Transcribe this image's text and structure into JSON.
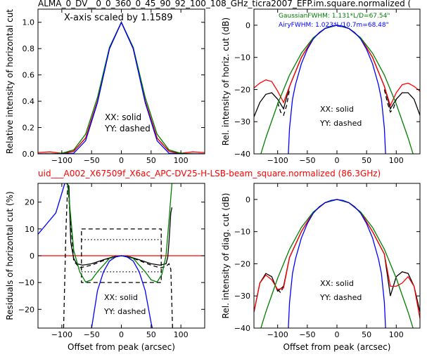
{
  "top_title": "ALMA_0_DV__0_0_360_0_45_90_92_100_108_GHz_ticra2007_EFP.im.square.normalized (",
  "mid_title": "uid___A002_X67509f_X6ac_APC-DV25-H-LSB-beam_square.normalized (86.3GHz)",
  "colors": {
    "black": "#000000",
    "red": "#ff0000",
    "blue": "#0000ff",
    "green": "#008000"
  },
  "chart_data": [
    {
      "id": "p1",
      "type": "line",
      "xlabel": "",
      "ylabel": "Relative intensity of horizontal cut",
      "xlim": [
        -140,
        140
      ],
      "ylim": [
        0.0,
        1.1
      ],
      "xticks": [
        -100,
        -50,
        0,
        50,
        100
      ],
      "yticks": [
        0.0,
        0.2,
        0.4,
        0.6,
        0.8,
        1.0
      ],
      "ytick_labels": [
        "0.0",
        "0.2",
        "0.4",
        "0.6",
        "0.8",
        "1.0"
      ],
      "annotations": [
        "X-axis scaled by 1.1589",
        "XX: solid",
        "YY: dashed"
      ],
      "series": [
        {
          "color": "black",
          "style": "solid",
          "x": [
            -140,
            -120,
            -100,
            -80,
            -60,
            -40,
            -20,
            0,
            20,
            40,
            60,
            80,
            100,
            120,
            140
          ],
          "y": [
            0.0,
            0.0,
            0.0,
            0.02,
            0.12,
            0.4,
            0.8,
            1.0,
            0.8,
            0.4,
            0.12,
            0.02,
            0.0,
            0.0,
            0.0
          ]
        },
        {
          "color": "black",
          "style": "dashed",
          "x": [
            -140,
            -120,
            -100,
            -80,
            -60,
            -40,
            -20,
            0,
            20,
            40,
            60,
            80,
            100,
            120,
            140
          ],
          "y": [
            0.0,
            0.0,
            0.0,
            0.02,
            0.12,
            0.4,
            0.8,
            1.0,
            0.8,
            0.4,
            0.12,
            0.02,
            0.0,
            0.0,
            0.0
          ]
        },
        {
          "color": "red",
          "style": "solid",
          "x": [
            -140,
            -120,
            -100,
            -80,
            -60,
            -40,
            -20,
            0,
            20,
            40,
            60,
            80,
            100,
            120,
            140
          ],
          "y": [
            0.01,
            0.015,
            0.005,
            0.02,
            0.12,
            0.4,
            0.8,
            1.0,
            0.8,
            0.4,
            0.12,
            0.02,
            0.005,
            0.015,
            0.01
          ]
        },
        {
          "color": "green",
          "style": "solid",
          "x": [
            -140,
            -120,
            -100,
            -80,
            -60,
            -40,
            -20,
            0,
            20,
            40,
            60,
            80,
            100,
            120,
            140
          ],
          "y": [
            0.0,
            0.0,
            0.005,
            0.03,
            0.15,
            0.43,
            0.81,
            1.0,
            0.81,
            0.43,
            0.15,
            0.03,
            0.005,
            0.0,
            0.0
          ]
        },
        {
          "color": "blue",
          "style": "solid",
          "x": [
            -140,
            -120,
            -100,
            -80,
            -60,
            -40,
            -20,
            0,
            20,
            40,
            60,
            80,
            100,
            120,
            140
          ],
          "y": [
            0.0,
            0.0,
            0.0,
            0.005,
            0.1,
            0.39,
            0.8,
            1.0,
            0.8,
            0.39,
            0.1,
            0.005,
            0.0,
            0.0,
            0.0
          ]
        }
      ]
    },
    {
      "id": "p2",
      "type": "line",
      "xlabel": "",
      "ylabel": "Rel. intensity of horiz. cut (dB)",
      "xlim": [
        -140,
        140
      ],
      "ylim": [
        -40,
        5
      ],
      "xticks": [
        -100,
        -50,
        0,
        50,
        100
      ],
      "yticks": [
        -40,
        -30,
        -20,
        -10,
        0
      ],
      "ytick_labels": [
        "−40",
        "−30",
        "−20",
        "−10",
        "0"
      ],
      "legend": [
        {
          "text": "GaussianFWHM: 1.131*L/D=67.54\"",
          "color": "green"
        },
        {
          "text": "AiryFWHM: 1.023*L/10.7m=68.48\"",
          "color": "blue"
        }
      ],
      "annotations": [
        "XX: solid",
        "YY: dashed"
      ],
      "series": [
        {
          "color": "black",
          "style": "solid",
          "x": [
            -140,
            -130,
            -120,
            -110,
            -100,
            -90,
            -80,
            -60,
            -40,
            -20,
            0,
            20,
            40,
            60,
            80,
            90,
            100,
            110,
            120,
            130,
            140
          ],
          "y": [
            -28.5,
            -24,
            -21.5,
            -21,
            -23,
            -26,
            -19,
            -10,
            -4,
            -1,
            0,
            -1,
            -4,
            -10,
            -19,
            -26,
            -23,
            -21,
            -21,
            -23,
            -28
          ]
        },
        {
          "color": "black",
          "style": "dashed",
          "x": [
            -100,
            -95,
            -90,
            -85,
            -80
          ],
          "y": [
            -24,
            -27,
            -28,
            -25,
            -20
          ]
        },
        {
          "color": "black",
          "style": "dashed",
          "x": [
            80,
            85,
            90,
            95,
            100
          ],
          "y": [
            -20,
            -24,
            -27,
            -26,
            -23
          ]
        },
        {
          "color": "red",
          "style": "solid",
          "x": [
            -140,
            -130,
            -120,
            -110,
            -100,
            -90,
            -80,
            -60,
            -40,
            -20,
            0,
            20,
            40,
            60,
            80,
            90,
            100,
            110,
            120,
            130,
            140
          ],
          "y": [
            -19.5,
            -18,
            -17,
            -17.5,
            -20.5,
            -24,
            -19,
            -10,
            -4,
            -1,
            0,
            -1,
            -4,
            -10,
            -19,
            -25,
            -21,
            -18.5,
            -18,
            -19,
            -20.5
          ]
        },
        {
          "color": "green",
          "style": "solid",
          "x": [
            -140,
            -120,
            -100,
            -80,
            -60,
            -40,
            -20,
            0,
            20,
            40,
            60,
            80,
            100,
            120,
            140
          ],
          "y": [
            -47,
            -35,
            -24.5,
            -15.5,
            -8.7,
            -3.9,
            -1,
            0,
            -1,
            -3.9,
            -8.7,
            -15.5,
            -24.5,
            -35,
            -47
          ]
        },
        {
          "color": "blue",
          "style": "solid",
          "x": [
            -82,
            -80,
            -75,
            -70,
            -60,
            -50,
            -40,
            -30,
            -20,
            -10,
            0,
            10,
            20,
            30,
            40,
            50,
            60,
            70,
            75,
            80,
            82
          ],
          "y": [
            -40,
            -32,
            -23,
            -18.5,
            -12,
            -7.5,
            -4.3,
            -2.3,
            -1,
            -0.3,
            0,
            -0.3,
            -1,
            -2.3,
            -4.3,
            -7.5,
            -12,
            -18.5,
            -23,
            -32,
            -40
          ]
        }
      ]
    },
    {
      "id": "p3",
      "type": "line",
      "xlabel": "Offset from peak (arcsec)",
      "ylabel": "Residuals of horizontal cut (%)",
      "xlim": [
        -140,
        140
      ],
      "ylim": [
        -27,
        27
      ],
      "xticks": [
        -100,
        -50,
        0,
        50,
        100
      ],
      "yticks": [
        -20,
        -10,
        0,
        10,
        20
      ],
      "ytick_labels": [
        "−20",
        "−10",
        "0",
        "10",
        "20"
      ],
      "annotations": [
        "XX: solid",
        "YY: dashed"
      ],
      "series": [
        {
          "color": "red",
          "style": "solid",
          "x": [
            -140,
            140
          ],
          "y": [
            0,
            0
          ]
        },
        {
          "color": "black",
          "style": "dashed",
          "x": [
            -67,
            67,
            67,
            -67,
            -67
          ],
          "y": [
            10,
            10,
            -10,
            -10,
            10
          ]
        },
        {
          "color": "black",
          "style": "dotted",
          "x": [
            -67,
            67
          ],
          "y": [
            6,
            6
          ]
        },
        {
          "color": "black",
          "style": "dotted",
          "x": [
            -67,
            67
          ],
          "y": [
            -6,
            -6
          ]
        },
        {
          "color": "black",
          "style": "solid",
          "x": [
            -92,
            -88,
            -85,
            -80,
            -75,
            -65,
            -50,
            -30,
            -15,
            0,
            15,
            30,
            50,
            65,
            75,
            78,
            80,
            83,
            85
          ],
          "y": [
            27,
            26,
            5,
            -1,
            -3,
            -3.5,
            -3,
            -1.5,
            -0.5,
            0,
            -0.5,
            -1.5,
            -3,
            -3.5,
            -3,
            -0.5,
            5,
            16,
            18
          ]
        },
        {
          "color": "black",
          "style": "dashed",
          "x": [
            -97,
            -93,
            -90,
            -85,
            -80,
            -70,
            -50,
            -30,
            -15,
            0,
            15,
            30,
            50,
            65,
            75,
            80,
            83,
            86,
            90
          ],
          "y": [
            -27,
            10,
            27,
            12,
            -2,
            -4.5,
            -3.5,
            -1.8,
            -0.5,
            0,
            -0.5,
            -1.8,
            -3.5,
            -4.5,
            -4,
            -3,
            -5,
            -27,
            -27
          ]
        },
        {
          "color": "green",
          "style": "solid",
          "x": [
            -93,
            -90,
            -80,
            -70,
            -60,
            -50,
            -40,
            -30,
            -20,
            0,
            20,
            30,
            40,
            50,
            60,
            68,
            75,
            80,
            85,
            90
          ],
          "y": [
            27,
            27,
            2,
            -6,
            -9.8,
            -9,
            -6,
            -3.5,
            -1,
            0,
            -1,
            -3.5,
            -6,
            -9,
            -9.8,
            -7,
            0,
            13,
            27,
            27
          ]
        },
        {
          "color": "blue",
          "style": "solid",
          "x": [
            -140,
            -110,
            -95,
            -92
          ],
          "y": [
            8,
            16,
            27,
            27
          ]
        },
        {
          "color": "blue",
          "style": "solid",
          "x": [
            -50,
            -40,
            -30,
            -20,
            -10,
            0,
            10,
            20,
            30,
            40,
            50,
            52
          ],
          "y": [
            -27,
            -13,
            -6,
            -2,
            -0.5,
            0,
            -0.5,
            -2,
            -6,
            -13,
            -25,
            -27
          ]
        }
      ]
    },
    {
      "id": "p4",
      "type": "line",
      "xlabel": "Offset from peak (arcsec)",
      "ylabel": "Rel. intensity of diag. cut (dB)",
      "xlim": [
        -140,
        140
      ],
      "ylim": [
        -40,
        5
      ],
      "xticks": [
        -100,
        -50,
        0,
        50,
        100
      ],
      "yticks": [
        -40,
        -30,
        -20,
        -10,
        0
      ],
      "ytick_labels": [
        "−40",
        "−30",
        "−20",
        "−10",
        "0"
      ],
      "annotations": [
        "XX: solid",
        "YY: dashed"
      ],
      "series": [
        {
          "color": "black",
          "style": "solid",
          "x": [
            -140,
            -130,
            -120,
            -110,
            -100,
            -90,
            -80,
            -60,
            -40,
            -20,
            0,
            20,
            40,
            60,
            80,
            90,
            100,
            110,
            120,
            130,
            140
          ],
          "y": [
            -35,
            -26,
            -23,
            -24,
            -28.5,
            -27,
            -18,
            -10,
            -4,
            -1,
            0,
            -1,
            -4,
            -10,
            -17,
            -30,
            -24,
            -22.5,
            -23,
            -27,
            -35
          ]
        },
        {
          "color": "black",
          "style": "dashed",
          "x": [
            -100,
            -95,
            -90
          ],
          "y": [
            -28,
            -29,
            -27
          ]
        },
        {
          "color": "red",
          "style": "solid",
          "x": [
            -140,
            -130,
            -120,
            -110,
            -100,
            -90,
            -80,
            -60,
            -40,
            -20,
            0,
            20,
            40,
            60,
            80,
            90,
            100,
            110,
            120,
            130,
            140
          ],
          "y": [
            -35,
            -26,
            -23.5,
            -25,
            -28,
            -27.5,
            -18,
            -10,
            -4,
            -1,
            0,
            -1,
            -4,
            -10,
            -17,
            -27,
            -27,
            -26,
            -24,
            -27,
            -37
          ]
        },
        {
          "color": "green",
          "style": "solid",
          "x": [
            -140,
            -120,
            -100,
            -80,
            -60,
            -40,
            -20,
            0,
            20,
            40,
            60,
            80,
            100,
            120,
            140
          ],
          "y": [
            -47,
            -35,
            -24.5,
            -15.5,
            -8.7,
            -3.9,
            -1,
            0,
            -1,
            -3.9,
            -8.7,
            -15.5,
            -24.5,
            -35,
            -47
          ]
        },
        {
          "color": "blue",
          "style": "solid",
          "x": [
            -82,
            -80,
            -75,
            -70,
            -60,
            -50,
            -40,
            -30,
            -20,
            -10,
            0,
            10,
            20,
            30,
            40,
            50,
            60,
            70,
            75,
            80,
            82
          ],
          "y": [
            -40,
            -32,
            -23,
            -18.5,
            -12,
            -7.5,
            -4.3,
            -2.3,
            -1,
            -0.3,
            0,
            -0.3,
            -1,
            -2.3,
            -4.3,
            -7.5,
            -12,
            -18.5,
            -23,
            -32,
            -40
          ]
        }
      ]
    }
  ]
}
